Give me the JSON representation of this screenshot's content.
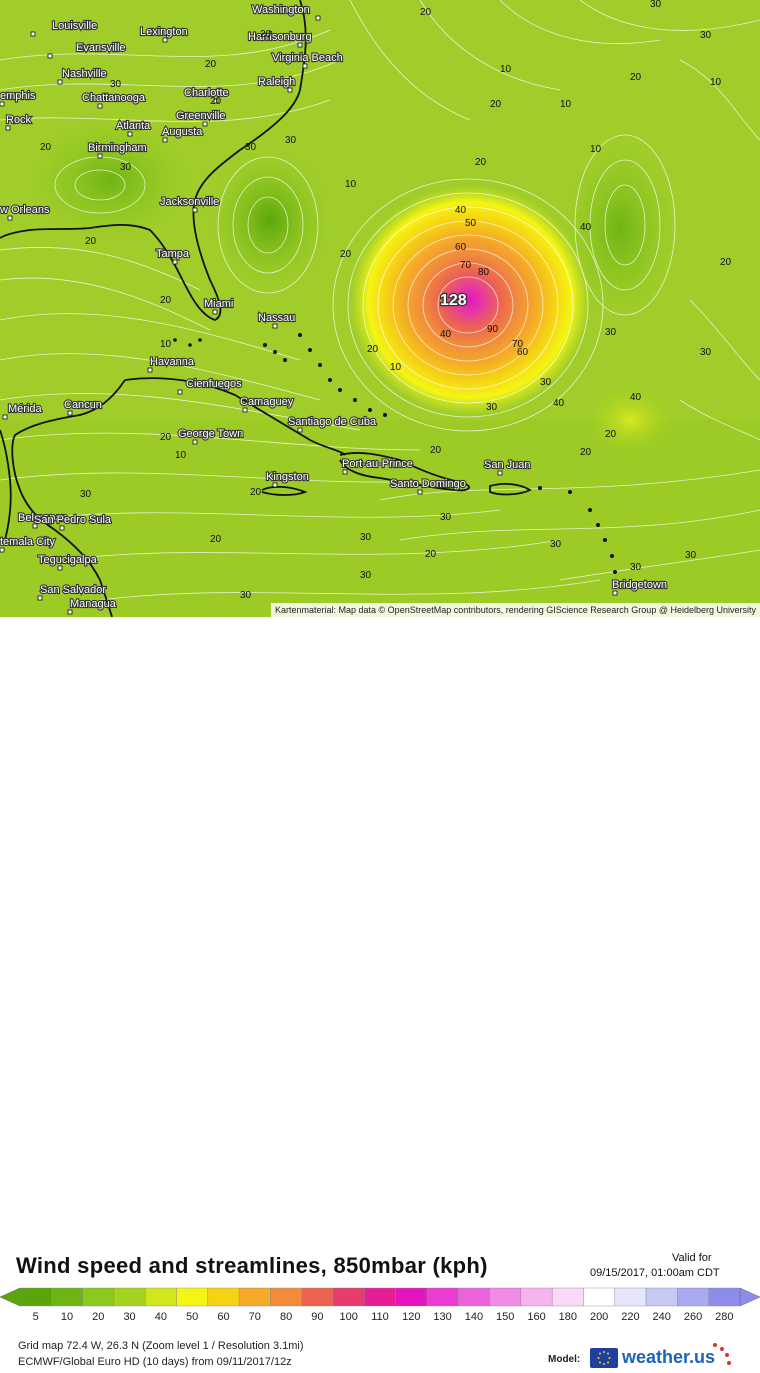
{
  "title": "Wind speed and streamlines, 850mbar (kph)",
  "valid": {
    "label": "Valid for",
    "time": "09/15/2017, 01:00am CDT"
  },
  "attribution": "Kartenmaterial: Map data © OpenStreetMap contributors, rendering GIScience Research Group @ Heidelberg University",
  "grid_info": "Grid map 72.4 W, 26.3 N (Zoom level 1 / Resolution 3.1mi)",
  "model_info": "ECMWF/Global Euro HD (10 days) from 09/11/2017/12z",
  "model_label": "Model:",
  "brand": "weather.us",
  "peak_value": "128",
  "legend": {
    "stops": [
      {
        "value": "5",
        "color": "#5aa50a"
      },
      {
        "value": "10",
        "color": "#6eb414"
      },
      {
        "value": "20",
        "color": "#8cc81e"
      },
      {
        "value": "30",
        "color": "#a5d21e"
      },
      {
        "value": "40",
        "color": "#d2e61e"
      },
      {
        "value": "50",
        "color": "#f5f514"
      },
      {
        "value": "60",
        "color": "#f5d214"
      },
      {
        "value": "70",
        "color": "#f5aa28"
      },
      {
        "value": "80",
        "color": "#f08c3c"
      },
      {
        "value": "90",
        "color": "#ec6450"
      },
      {
        "value": "100",
        "color": "#e63c6e"
      },
      {
        "value": "110",
        "color": "#e61e96"
      },
      {
        "value": "120",
        "color": "#e614be"
      },
      {
        "value": "130",
        "color": "#e83cd2"
      },
      {
        "value": "140",
        "color": "#ec64dc"
      },
      {
        "value": "150",
        "color": "#f08ce6"
      },
      {
        "value": "160",
        "color": "#f5b4ee"
      },
      {
        "value": "180",
        "color": "#fad8f6"
      },
      {
        "value": "200",
        "color": "#ffffff"
      },
      {
        "value": "220",
        "color": "#e6e6fa"
      },
      {
        "value": "240",
        "color": "#c8c8f5"
      },
      {
        "value": "260",
        "color": "#aaaaf0"
      },
      {
        "value": "280",
        "color": "#8c8ceb"
      }
    ]
  },
  "cities": [
    {
      "name": "Washington"
    },
    {
      "name": "Louisville"
    },
    {
      "name": "Lexington"
    },
    {
      "name": "Evansville"
    },
    {
      "name": "Harrisonburg"
    },
    {
      "name": "Virginia Beach"
    },
    {
      "name": "Nashville"
    },
    {
      "name": "Raleigh"
    },
    {
      "name": "emphis"
    },
    {
      "name": "Chattanooga"
    },
    {
      "name": "Charlotte"
    },
    {
      "name": "Rock"
    },
    {
      "name": "Greenville"
    },
    {
      "name": "Atlanta"
    },
    {
      "name": "Augusta"
    },
    {
      "name": "Birmingham"
    },
    {
      "name": "Jacksonville"
    },
    {
      "name": "w Orleans"
    },
    {
      "name": "Tampa"
    },
    {
      "name": "Miami"
    },
    {
      "name": "Nassau"
    },
    {
      "name": "Havanna"
    },
    {
      "name": "Cienfuegos"
    },
    {
      "name": "Camaguey"
    },
    {
      "name": "Mérida"
    },
    {
      "name": "Cancun"
    },
    {
      "name": "Santiago de Cuba"
    },
    {
      "name": "George Town"
    },
    {
      "name": "Port-au-Prince"
    },
    {
      "name": "San Juan"
    },
    {
      "name": "Santo Domingo"
    },
    {
      "name": "Kingston"
    },
    {
      "name": "Belmopan"
    },
    {
      "name": "San Pedro Sula"
    },
    {
      "name": "temala City"
    },
    {
      "name": "Tegucigalpa"
    },
    {
      "name": "San Salvador"
    },
    {
      "name": "Managua"
    },
    {
      "name": "Bridgetown"
    }
  ],
  "isotach_labels": [
    "20",
    "30",
    "10",
    "20",
    "10",
    "30",
    "20",
    "20",
    "30",
    "20",
    "10",
    "20",
    "30",
    "20",
    "10",
    "10",
    "20",
    "20",
    "40",
    "40",
    "50",
    "60",
    "70",
    "80",
    "40",
    "90",
    "70",
    "60",
    "30",
    "40",
    "20",
    "10",
    "20",
    "30",
    "20",
    "10",
    "30",
    "40",
    "20",
    "30",
    "20",
    "30",
    "30",
    "20",
    "30",
    "30",
    "30",
    "20",
    "30",
    "20",
    "20",
    "30",
    "10",
    "30",
    "30",
    "20",
    "30",
    "20"
  ]
}
